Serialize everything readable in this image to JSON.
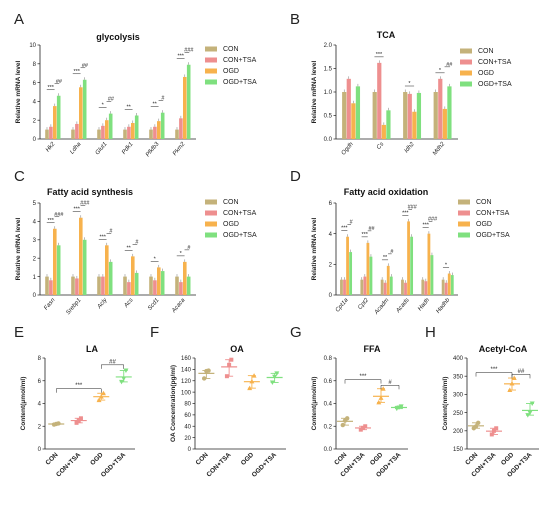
{
  "figure": {
    "colors": {
      "CON": "#c4b27a",
      "CON+TSA": "#ee8f8f",
      "OGD": "#f7b24d",
      "OGD+TSA": "#7fe07f"
    },
    "legend_groups": [
      "CON",
      "CON+TSA",
      "OGD",
      "OGD+TSA"
    ]
  },
  "chart_data": [
    {
      "panel": "A",
      "type": "bar",
      "title": "glycolysis",
      "xlabel": "",
      "ylabel": "Relative mRNA level",
      "ylim": [
        0,
        10
      ],
      "yticks": [
        "0",
        "2",
        "4",
        "6",
        "8",
        "10"
      ],
      "categories": [
        "Hk2",
        "Ldha",
        "Glut1",
        "Pdk1",
        "Pfkfb3",
        "Pkm2"
      ],
      "series": [
        {
          "name": "CON",
          "values": [
            1.0,
            1.0,
            1.0,
            1.0,
            1.0,
            1.0
          ]
        },
        {
          "name": "CON+TSA",
          "values": [
            1.3,
            1.6,
            1.4,
            1.3,
            1.3,
            2.2
          ]
        },
        {
          "name": "OGD",
          "values": [
            3.5,
            5.5,
            2.0,
            1.7,
            1.9,
            6.6
          ]
        },
        {
          "name": "OGD+TSA",
          "values": [
            4.6,
            6.3,
            2.7,
            2.5,
            2.8,
            7.9
          ]
        }
      ],
      "annotations": [
        [
          "***",
          "##"
        ],
        [
          "***",
          "##"
        ],
        [
          "*",
          "##"
        ],
        [
          "**",
          ""
        ],
        [
          "**",
          "#"
        ],
        [
          "***",
          "###"
        ]
      ],
      "legend": "right"
    },
    {
      "panel": "B",
      "type": "bar",
      "title": "TCA",
      "xlabel": "",
      "ylabel": "Relative mRNA level",
      "ylim": [
        0,
        2.0
      ],
      "yticks": [
        "0.0",
        "0.5",
        "1.0",
        "1.5",
        "2.0"
      ],
      "categories": [
        "Ogdh",
        "Cs",
        "Idh2",
        "Mdh2"
      ],
      "series": [
        {
          "name": "CON",
          "values": [
            1.0,
            1.0,
            1.0,
            1.0
          ]
        },
        {
          "name": "CON+TSA",
          "values": [
            1.28,
            1.62,
            0.96,
            1.28
          ]
        },
        {
          "name": "OGD",
          "values": [
            0.76,
            0.3,
            0.58,
            0.64
          ]
        },
        {
          "name": "OGD+TSA",
          "values": [
            1.12,
            0.61,
            0.98,
            1.12
          ]
        }
      ],
      "annotations": [
        [
          "",
          ""
        ],
        [
          "***",
          ""
        ],
        [
          "*",
          ""
        ],
        [
          "*",
          "##"
        ]
      ],
      "legend": "right"
    },
    {
      "panel": "C",
      "type": "bar",
      "title": "Fatty acid synthesis",
      "xlabel": "",
      "ylabel": "Relative mRNA level",
      "ylim": [
        0,
        5
      ],
      "yticks": [
        "0",
        "1",
        "2",
        "3",
        "4",
        "5"
      ],
      "categories": [
        "Fasn",
        "Srebp1",
        "Acly",
        "Acs",
        "Scd1",
        "Acaca"
      ],
      "series": [
        {
          "name": "CON",
          "values": [
            1.0,
            1.0,
            1.0,
            1.0,
            1.0,
            1.0
          ]
        },
        {
          "name": "CON+TSA",
          "values": [
            0.8,
            0.9,
            1.0,
            0.7,
            0.8,
            0.7
          ]
        },
        {
          "name": "OGD",
          "values": [
            3.6,
            4.2,
            2.7,
            2.1,
            1.5,
            1.8
          ]
        },
        {
          "name": "OGD+TSA",
          "values": [
            2.7,
            3.0,
            1.8,
            1.2,
            1.3,
            1.0
          ]
        }
      ],
      "annotations": [
        [
          "***",
          "###"
        ],
        [
          "***",
          "###"
        ],
        [
          "***",
          "#"
        ],
        [
          "**",
          "#"
        ],
        [
          "*",
          ""
        ],
        [
          "*",
          "#"
        ]
      ],
      "legend": "right"
    },
    {
      "panel": "D",
      "type": "bar",
      "title": "Fatty acid oxidation",
      "xlabel": "",
      "ylabel": "Relative mRNA level",
      "ylim": [
        0,
        6
      ],
      "yticks": [
        "0",
        "2",
        "4",
        "6"
      ],
      "categories": [
        "Cpt1a",
        "Cpt2",
        "Acadm",
        "Acads",
        "Hadh",
        "Hadhb"
      ],
      "series": [
        {
          "name": "CON",
          "values": [
            1.0,
            1.0,
            1.0,
            1.0,
            1.0,
            1.0
          ]
        },
        {
          "name": "CON+TSA",
          "values": [
            1.0,
            1.2,
            0.8,
            0.8,
            0.9,
            0.8
          ]
        },
        {
          "name": "OGD",
          "values": [
            3.8,
            3.4,
            1.9,
            4.8,
            4.0,
            1.4
          ]
        },
        {
          "name": "OGD+TSA",
          "values": [
            2.8,
            2.5,
            1.2,
            3.8,
            2.6,
            1.3
          ]
        }
      ],
      "annotations": [
        [
          "***",
          "#"
        ],
        [
          "***",
          "##"
        ],
        [
          "**",
          "#"
        ],
        [
          "***",
          "###"
        ],
        [
          "***",
          "###"
        ],
        [
          "*",
          ""
        ]
      ],
      "legend": "right"
    },
    {
      "panel": "E",
      "type": "scatter",
      "title": "LA",
      "xlabel": "",
      "ylabel": "Content(μmol/ml)",
      "ylim": [
        0,
        8
      ],
      "yticks": [
        "0",
        "2",
        "4",
        "6",
        "8"
      ],
      "categories": [
        "CON",
        "CON+TSA",
        "OGD",
        "OGD+TSA"
      ],
      "points": [
        [
          2.15,
          2.2,
          2.25
        ],
        [
          2.3,
          2.5,
          2.7
        ],
        [
          4.3,
          4.6,
          4.9
        ],
        [
          5.9,
          6.2,
          6.9
        ]
      ],
      "brackets": [
        {
          "from": 0,
          "to": 2,
          "label": "***",
          "level": 5.3
        },
        {
          "from": 2,
          "to": 3,
          "label": "##",
          "level": 7.4
        }
      ]
    },
    {
      "panel": "F",
      "type": "scatter",
      "title": "OA",
      "xlabel": "",
      "ylabel": "OA Concentration(pg/ml)",
      "ylim": [
        0,
        160
      ],
      "yticks": [
        "0",
        "20",
        "40",
        "60",
        "80",
        "100",
        "120",
        "140",
        "160"
      ],
      "categories": [
        "CON",
        "CON+TSA",
        "OGD",
        "OGD+TSA"
      ],
      "points": [
        [
          124,
          137,
          138
        ],
        [
          128,
          148,
          157
        ],
        [
          107,
          119,
          129
        ],
        [
          117,
          127,
          133
        ]
      ],
      "brackets": []
    },
    {
      "panel": "G",
      "type": "scatter",
      "title": "FFA",
      "xlabel": "",
      "ylabel": "Content(μmol/ml)",
      "ylim": [
        0,
        0.8
      ],
      "yticks": [
        "0.0",
        "0.2",
        "0.4",
        "0.6",
        "0.8"
      ],
      "categories": [
        "CON",
        "CON+TSA",
        "OGD",
        "OGD+TSA"
      ],
      "points": [
        [
          0.21,
          0.25,
          0.27
        ],
        [
          0.17,
          0.185,
          0.2
        ],
        [
          0.41,
          0.45,
          0.53
        ],
        [
          0.355,
          0.365,
          0.375
        ]
      ],
      "brackets": [
        {
          "from": 0,
          "to": 2,
          "label": "***",
          "level": 0.61
        },
        {
          "from": 2,
          "to": 3,
          "label": "#",
          "level": 0.56
        }
      ]
    },
    {
      "panel": "H",
      "type": "scatter",
      "title": "Acetyl-CoA",
      "xlabel": "",
      "ylabel": "Content(nmol/ml)",
      "ylim": [
        150,
        400
      ],
      "yticks": [
        "150",
        "200",
        "250",
        "300",
        "350",
        "400"
      ],
      "categories": [
        "CON",
        "CON+TSA",
        "OGD",
        "OGD+TSA"
      ],
      "points": [
        [
          207,
          212,
          222
        ],
        [
          190,
          200,
          207
        ],
        [
          312,
          330,
          345
        ],
        [
          243,
          250,
          275
        ]
      ],
      "brackets": [
        {
          "from": 0,
          "to": 2,
          "label": "***",
          "level": 360
        },
        {
          "from": 2,
          "to": 3,
          "label": "##",
          "level": 355
        }
      ]
    }
  ]
}
